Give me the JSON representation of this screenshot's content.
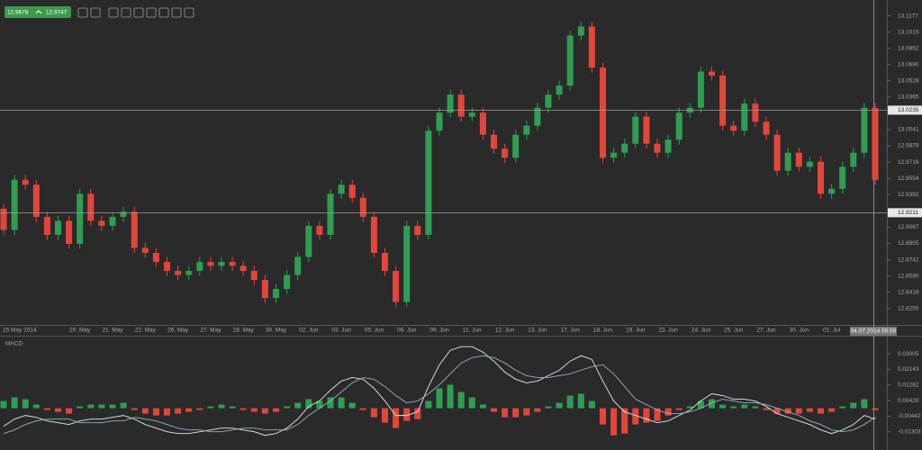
{
  "toolbar": {
    "bid": 12.9678,
    "ask": 12.9747
  },
  "chart_data": [
    {
      "type": "candlestick",
      "categories": [
        "15 May 2014",
        null,
        null,
        null,
        null,
        null,
        null,
        "20. May",
        null,
        null,
        "21. May",
        null,
        null,
        "22. May",
        null,
        null,
        "26. May",
        null,
        null,
        "27. May",
        null,
        null,
        "28. May",
        null,
        null,
        "30. May",
        null,
        null,
        "02. Jun",
        null,
        null,
        "03. Jun",
        null,
        null,
        "05. Jun",
        null,
        null,
        "06. Jun",
        null,
        null,
        "09. Jun",
        null,
        null,
        "11. Jun",
        null,
        null,
        "12. Jun",
        null,
        null,
        "13. Jun",
        null,
        null,
        "17. Jun",
        null,
        null,
        "18. Jun",
        null,
        null,
        "19. Jun",
        null,
        null,
        "23. Jun",
        null,
        null,
        "24. Jun",
        null,
        null,
        "25. Jun",
        null,
        null,
        "27. Jun",
        null,
        null,
        "30. Jun",
        null,
        null,
        "01. Jul",
        null,
        null,
        null,
        null
      ],
      "open": [
        12.925,
        12.904,
        12.954,
        12.949,
        12.917,
        12.899,
        12.913,
        12.89,
        12.94,
        12.913,
        12.908,
        12.917,
        12.922,
        12.886,
        12.881,
        12.872,
        12.863,
        12.859,
        12.863,
        12.872,
        12.868,
        12.872,
        12.868,
        12.863,
        12.854,
        12.836,
        12.845,
        12.859,
        12.877,
        12.908,
        12.899,
        12.94,
        12.949,
        12.936,
        12.917,
        12.881,
        12.863,
        12.832,
        12.908,
        12.899,
        13.003,
        13.021,
        13.039,
        13.017,
        13.021,
        12.999,
        12.985,
        12.976,
        12.999,
        13.008,
        13.026,
        13.039,
        13.048,
        13.098,
        13.107,
        13.066,
        12.976,
        12.981,
        12.99,
        13.017,
        12.99,
        12.981,
        12.994,
        13.021,
        13.026,
        13.062,
        13.058,
        13.008,
        13.003,
        13.03,
        13.012,
        12.999,
        12.963,
        12.981,
        12.967,
        12.972,
        12.94,
        12.945,
        12.967,
        12.981,
        13.026
      ],
      "high": [
        12.93,
        12.959,
        12.959,
        12.954,
        12.922,
        12.918,
        12.918,
        12.945,
        12.945,
        12.918,
        12.922,
        12.927,
        12.927,
        12.891,
        12.886,
        12.877,
        12.868,
        12.868,
        12.877,
        12.877,
        12.877,
        12.877,
        12.873,
        12.868,
        12.859,
        12.85,
        12.864,
        12.882,
        12.913,
        12.913,
        12.945,
        12.954,
        12.954,
        12.941,
        12.922,
        12.886,
        12.868,
        12.913,
        12.913,
        13.008,
        13.026,
        13.044,
        13.044,
        13.026,
        13.026,
        13.004,
        12.99,
        13.004,
        13.013,
        13.031,
        13.044,
        13.053,
        13.103,
        13.112,
        13.112,
        13.071,
        12.986,
        12.995,
        13.022,
        13.022,
        12.995,
        12.999,
        13.026,
        13.031,
        13.067,
        13.067,
        13.063,
        13.013,
        13.035,
        13.035,
        13.017,
        13.004,
        12.986,
        12.986,
        12.977,
        12.977,
        12.95,
        12.972,
        12.986,
        13.031,
        13.031
      ],
      "low": [
        12.899,
        12.899,
        12.944,
        12.912,
        12.894,
        12.894,
        12.885,
        12.885,
        12.908,
        12.903,
        12.903,
        12.912,
        12.881,
        12.876,
        12.867,
        12.858,
        12.854,
        12.854,
        12.858,
        12.863,
        12.863,
        12.863,
        12.858,
        12.849,
        12.831,
        12.831,
        12.84,
        12.854,
        12.872,
        12.894,
        12.894,
        12.935,
        12.931,
        12.912,
        12.876,
        12.858,
        12.827,
        12.827,
        12.894,
        12.894,
        12.998,
        13.016,
        13.012,
        13.012,
        12.994,
        12.98,
        12.971,
        12.971,
        12.994,
        13.003,
        13.021,
        13.034,
        13.043,
        13.093,
        13.061,
        12.971,
        12.971,
        12.976,
        12.985,
        12.985,
        12.976,
        12.976,
        12.989,
        13.016,
        13.021,
        13.053,
        13.003,
        12.998,
        12.998,
        13.007,
        12.994,
        12.958,
        12.958,
        12.962,
        12.962,
        12.935,
        12.935,
        12.94,
        12.962,
        12.976,
        12.949
      ],
      "close": [
        12.904,
        12.954,
        12.949,
        12.917,
        12.899,
        12.913,
        12.89,
        12.94,
        12.913,
        12.908,
        12.917,
        12.922,
        12.886,
        12.881,
        12.872,
        12.863,
        12.859,
        12.863,
        12.872,
        12.868,
        12.872,
        12.868,
        12.863,
        12.854,
        12.836,
        12.845,
        12.859,
        12.877,
        12.908,
        12.899,
        12.94,
        12.949,
        12.936,
        12.917,
        12.881,
        12.863,
        12.832,
        12.908,
        12.899,
        13.003,
        13.021,
        13.039,
        13.017,
        13.021,
        12.999,
        12.985,
        12.976,
        12.999,
        13.008,
        13.026,
        13.039,
        13.048,
        13.098,
        13.107,
        13.066,
        12.976,
        12.981,
        12.99,
        13.017,
        12.99,
        12.981,
        12.994,
        13.021,
        13.026,
        13.062,
        13.058,
        13.008,
        13.003,
        13.03,
        13.012,
        12.999,
        12.963,
        12.981,
        12.967,
        12.972,
        12.94,
        12.945,
        12.967,
        12.981,
        13.026,
        12.954
      ],
      "up_color": "#2f9e52",
      "down_color": "#e2463b",
      "grid": false,
      "ylim": [
        12.81,
        13.129
      ],
      "yticks": [
        13.1177,
        13.1015,
        13.0852,
        {
          "value": 13.069,
          "label": "13.0690"
        },
        13.0528,
        13.0365,
        13.0041,
        12.9879,
        12.9716,
        12.9554,
        12.9392,
        12.9067,
        12.8905,
        12.8742,
        {
          "value": 12.858,
          "label": "12.8580"
        },
        12.8418,
        12.8255
      ],
      "price_lines": [
        13.0235,
        12.9211
      ],
      "crosshair_label": "04.07.2014 00:00"
    },
    {
      "type": "macd",
      "title": "MACD",
      "histogram": {
        "up_color": "#2f9e52",
        "down_color": "#e2463b",
        "values": [
          0.004,
          0.006,
          0.005,
          0.002,
          -0.001,
          -0.002,
          -0.003,
          0.001,
          0.002,
          0.002,
          0.002,
          0.003,
          -0.001,
          -0.003,
          -0.004,
          -0.004,
          -0.003,
          -0.002,
          -0.001,
          0.001,
          0.002,
          0.001,
          -0.001,
          -0.002,
          -0.003,
          -0.002,
          0.001,
          0.003,
          0.005,
          0.004,
          0.006,
          0.006,
          0.003,
          -0.001,
          -0.005,
          -0.008,
          -0.011,
          -0.007,
          -0.006,
          0.004,
          0.011,
          0.013,
          0.009,
          0.006,
          0.002,
          -0.002,
          -0.005,
          -0.005,
          -0.004,
          -0.002,
          0.001,
          0.003,
          0.007,
          0.008,
          0.004,
          -0.009,
          -0.015,
          -0.014,
          -0.009,
          -0.008,
          -0.007,
          -0.004,
          -0.001,
          0.001,
          0.004,
          0.005,
          0.002,
          0.001,
          0.002,
          0.001,
          -0.001,
          -0.003,
          -0.003,
          -0.003,
          -0.002,
          -0.003,
          -0.002,
          0.001,
          0.003,
          0.005,
          -0.001
        ]
      },
      "lines": [
        {
          "color": "#e8e8e8",
          "values": [
            -0.01,
            -0.006,
            -0.004,
            -0.005,
            -0.007,
            -0.008,
            -0.009,
            -0.007,
            -0.006,
            -0.006,
            -0.005,
            -0.004,
            -0.006,
            -0.009,
            -0.011,
            -0.013,
            -0.014,
            -0.014,
            -0.013,
            -0.012,
            -0.011,
            -0.011,
            -0.012,
            -0.013,
            -0.015,
            -0.014,
            -0.011,
            -0.006,
            0.001,
            0.004,
            0.01,
            0.015,
            0.017,
            0.016,
            0.011,
            0.004,
            -0.004,
            -0.004,
            -0.002,
            0.012,
            0.024,
            0.032,
            0.034,
            0.034,
            0.031,
            0.026,
            0.02,
            0.016,
            0.014,
            0.015,
            0.018,
            0.021,
            0.026,
            0.029,
            0.027,
            0.015,
            0.004,
            -0.002,
            -0.004,
            -0.006,
            -0.008,
            -0.007,
            -0.004,
            -0.001,
            0.004,
            0.008,
            0.007,
            0.005,
            0.005,
            0.004,
            0.001,
            -0.003,
            -0.005,
            -0.007,
            -0.009,
            -0.012,
            -0.014,
            -0.012,
            -0.009,
            -0.004,
            -0.006
          ]
        },
        {
          "color": "#8fb4c8",
          "values": [
            -0.014,
            -0.012,
            -0.009,
            -0.007,
            -0.006,
            -0.006,
            -0.006,
            -0.008,
            -0.008,
            -0.008,
            -0.007,
            -0.007,
            -0.005,
            -0.006,
            -0.007,
            -0.009,
            -0.011,
            -0.012,
            -0.012,
            -0.013,
            -0.013,
            -0.012,
            -0.011,
            -0.011,
            -0.012,
            -0.012,
            -0.012,
            -0.009,
            -0.004,
            0.0,
            0.004,
            0.009,
            0.014,
            0.017,
            0.016,
            0.012,
            0.007,
            0.003,
            0.004,
            0.008,
            0.013,
            0.019,
            0.025,
            0.028,
            0.029,
            0.028,
            0.025,
            0.021,
            0.018,
            0.017,
            0.017,
            0.018,
            0.019,
            0.021,
            0.023,
            0.024,
            0.019,
            0.012,
            0.005,
            0.002,
            -0.001,
            -0.003,
            -0.003,
            -0.002,
            0.0,
            0.003,
            0.005,
            0.004,
            0.003,
            0.003,
            0.002,
            0.0,
            -0.002,
            -0.004,
            -0.007,
            -0.009,
            -0.012,
            -0.013,
            -0.012,
            -0.009,
            -0.005
          ]
        }
      ],
      "ylim": [
        -0.0216,
        0.0376
      ],
      "yticks": [
        0.03005,
        0.02143,
        0.01282,
        {
          "value": 0.0042,
          "label": "0.00420"
        },
        -0.00442,
        -0.01303
      ]
    }
  ]
}
